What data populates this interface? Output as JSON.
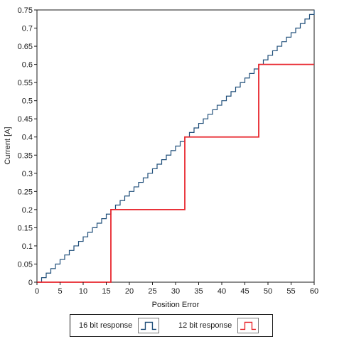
{
  "chart_data": {
    "type": "line",
    "xlabel": "Position Error",
    "ylabel": "Current [A]",
    "xlim": [
      0,
      60
    ],
    "ylim": [
      0,
      0.75
    ],
    "x_ticks": [
      "0",
      "5",
      "10",
      "15",
      "20",
      "25",
      "30",
      "35",
      "40",
      "45",
      "50",
      "55",
      "60"
    ],
    "y_ticks": [
      "0",
      "0.05",
      "0.1",
      "0.15",
      "0.2",
      "0.25",
      "0.3",
      "0.35",
      "0.4",
      "0.45",
      "0.5",
      "0.55",
      "0.6",
      "0.65",
      "0.7",
      "0.75"
    ],
    "x_tick_values": [
      0,
      5,
      10,
      15,
      20,
      25,
      30,
      35,
      40,
      45,
      50,
      55,
      60
    ],
    "y_tick_values": [
      0,
      0.05,
      0.1,
      0.15,
      0.2,
      0.25,
      0.3,
      0.35,
      0.4,
      0.45,
      0.5,
      0.55,
      0.6,
      0.65,
      0.7,
      0.75
    ],
    "grid": false,
    "legend_position": "bottom",
    "series": [
      {
        "name": "16 bit response",
        "color": "#1f4e79",
        "step": true,
        "x": [
          0,
          1,
          2,
          3,
          4,
          5,
          6,
          7,
          8,
          9,
          10,
          11,
          12,
          13,
          14,
          15,
          16,
          17,
          18,
          19,
          20,
          21,
          22,
          23,
          24,
          25,
          26,
          27,
          28,
          29,
          30,
          31,
          32,
          33,
          34,
          35,
          36,
          37,
          38,
          39,
          40,
          41,
          42,
          43,
          44,
          45,
          46,
          47,
          48,
          49,
          50,
          51,
          52,
          53,
          54,
          55,
          56,
          57,
          58,
          59,
          60
        ],
        "y": [
          0,
          0.0125,
          0.025,
          0.0375,
          0.05,
          0.0625,
          0.075,
          0.0875,
          0.1,
          0.1125,
          0.125,
          0.1375,
          0.15,
          0.1625,
          0.175,
          0.1875,
          0.2,
          0.2125,
          0.225,
          0.2375,
          0.25,
          0.2625,
          0.275,
          0.2875,
          0.3,
          0.3125,
          0.325,
          0.3375,
          0.35,
          0.3625,
          0.375,
          0.3875,
          0.4,
          0.4125,
          0.425,
          0.4375,
          0.45,
          0.4625,
          0.475,
          0.4875,
          0.5,
          0.5125,
          0.525,
          0.5375,
          0.55,
          0.5625,
          0.575,
          0.5875,
          0.6,
          0.6125,
          0.625,
          0.6375,
          0.65,
          0.6625,
          0.675,
          0.6875,
          0.7,
          0.7125,
          0.725,
          0.7375,
          0.75
        ]
      },
      {
        "name": "12 bit response",
        "color": "#e8262d",
        "step": true,
        "x": [
          0,
          16,
          32,
          48,
          60
        ],
        "y": [
          0,
          0.2,
          0.4,
          0.6,
          0.6
        ]
      }
    ]
  },
  "legend": {
    "items": [
      {
        "label": "16 bit response",
        "color": "#1f4e79"
      },
      {
        "label": "12 bit response",
        "color": "#e8262d"
      }
    ]
  }
}
